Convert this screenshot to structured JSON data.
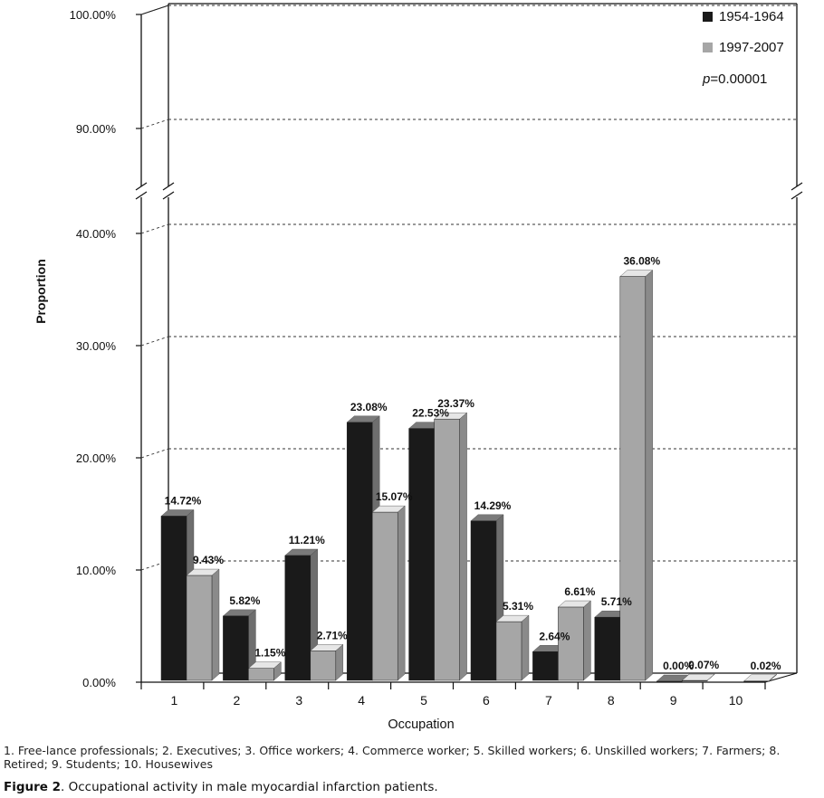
{
  "chart_data": {
    "type": "bar",
    "title": "",
    "xlabel": "Occupation",
    "ylabel": "Proportion",
    "categories": [
      "1",
      "2",
      "3",
      "4",
      "5",
      "6",
      "7",
      "8",
      "9",
      "10"
    ],
    "series": [
      {
        "name": "1954-1964",
        "color": "#1a1a1a",
        "values": [
          14.72,
          5.82,
          11.21,
          23.08,
          22.53,
          14.29,
          2.64,
          5.71,
          0.0,
          null
        ],
        "labels": [
          "14.72%",
          "5.82%",
          "11.21%",
          "23.08%",
          "22.53%",
          "14.29%",
          "2.64%",
          "5.71%",
          "0.00%",
          ""
        ]
      },
      {
        "name": "1997-2007",
        "color": "#a6a6a6",
        "values": [
          9.43,
          1.15,
          2.71,
          15.07,
          23.37,
          5.31,
          6.61,
          36.08,
          0.07,
          0.02
        ],
        "labels": [
          "9.43%",
          "1.15%",
          "2.71%",
          "15.07%",
          "23.37%",
          "5.31%",
          "6.61%",
          "36.08%",
          "0.07%",
          "0.02%"
        ]
      }
    ],
    "y_axis": {
      "scale": "broken",
      "lower_range": [
        0,
        40
      ],
      "upper_range": [
        90,
        100
      ],
      "ticks": [
        0,
        10,
        20,
        30,
        40,
        90,
        100
      ],
      "tick_labels": [
        "0.00%",
        "10.00%",
        "20.00%",
        "30.00%",
        "40.00%",
        "90.00%",
        "100.00%"
      ]
    },
    "grid": true,
    "legend_position": "top-right",
    "annotation": {
      "p": "p",
      "rest": "=0.00001"
    }
  },
  "footnote": "1. Free-lance professionals; 2. Executives; 3. Office workers; 4. Commerce worker; 5. Skilled workers; 6. Unskilled workers; 7. Farmers; 8. Retired; 9. Students; 10. Housewives",
  "caption": {
    "label": "Figure 2",
    "text": ". Occupational activity in male myocardial infarction patients."
  }
}
